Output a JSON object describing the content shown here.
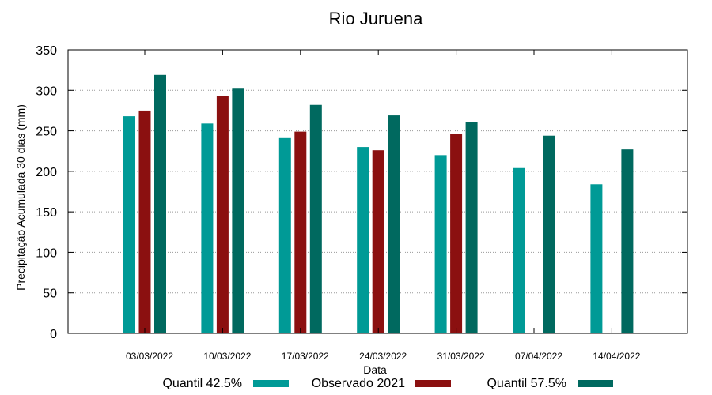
{
  "chart_data": {
    "type": "bar",
    "title": "Rio Juruena",
    "xlabel": "Data",
    "ylabel": "Precipitação Acumulada 30 dias (mm)",
    "ylim": [
      0,
      350
    ],
    "yticks": [
      0,
      50,
      100,
      150,
      200,
      250,
      300,
      350
    ],
    "grid": true,
    "legend_position": "bottom",
    "categories": [
      "03/03/2022",
      "10/03/2022",
      "17/03/2022",
      "24/03/2022",
      "31/03/2022",
      "07/04/2022",
      "14/04/2022"
    ],
    "series": [
      {
        "name": "Quantil 42.5%",
        "color": "#009a96",
        "values": [
          268,
          259,
          241,
          230,
          220,
          204,
          184
        ]
      },
      {
        "name": "Observado 2021",
        "color": "#8b1010",
        "values": [
          275,
          293,
          249,
          226,
          246,
          null,
          null
        ]
      },
      {
        "name": "Quantil 57.5%",
        "color": "#00695f",
        "values": [
          319,
          302,
          282,
          269,
          261,
          244,
          227
        ]
      }
    ]
  }
}
